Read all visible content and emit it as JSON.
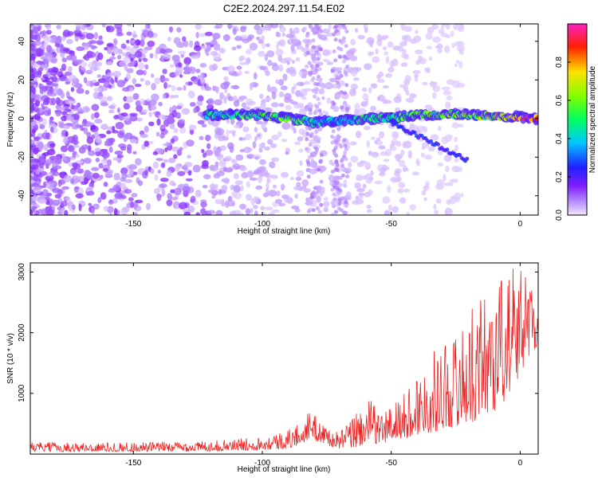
{
  "title": "C2E2.2024.297.11.54.E02",
  "chart_data": [
    {
      "type": "heatmap",
      "xlabel": "Height of straight line (km)",
      "ylabel": "Frequency (Hz)",
      "xlim": [
        -190,
        7
      ],
      "ylim": [
        -50,
        49
      ],
      "xticks": [
        -150,
        -100,
        -50,
        0
      ],
      "yticks": [
        -40,
        -20,
        0,
        20,
        40
      ],
      "colorbar": {
        "label": "Normalized spectral amplitude",
        "range": [
          0,
          1
        ],
        "ticks": [
          "0.0",
          "0.2",
          "0.4",
          "0.6",
          "0.8"
        ]
      },
      "ridge": {
        "description_points_x": [
          -120,
          -110,
          -100,
          -90,
          -80,
          -70,
          -60,
          -50,
          -40,
          -30,
          -20,
          -10,
          0,
          5
        ],
        "frequency": [
          2,
          2,
          2,
          0,
          -2,
          -1,
          0,
          0,
          2,
          2,
          2,
          1,
          1,
          0
        ],
        "amplitude": [
          0.45,
          0.5,
          0.55,
          0.6,
          0.45,
          0.35,
          0.55,
          0.5,
          0.55,
          0.55,
          0.6,
          0.65,
          0.9,
          0.95
        ]
      }
    },
    {
      "type": "line",
      "xlabel": "Height of straight line (km)",
      "ylabel": "SNR (10 * v/v)",
      "xlim": [
        -190,
        7
      ],
      "ylim": [
        0,
        3150
      ],
      "xticks": [
        -150,
        -100,
        -50,
        0
      ],
      "yticks": [
        1000,
        2000,
        3000
      ],
      "series": [
        {
          "color": "#ee2222",
          "x": [
            -190,
            -170,
            -150,
            -130,
            -120,
            -110,
            -100,
            -90,
            -85,
            -82,
            -78,
            -72,
            -68,
            -62,
            -58,
            -54,
            -50,
            -45,
            -40,
            -35,
            -30,
            -25,
            -20,
            -15,
            -10,
            -5,
            0,
            3,
            7
          ],
          "envelope_low": [
            40,
            40,
            40,
            40,
            50,
            60,
            70,
            90,
            150,
            250,
            200,
            100,
            80,
            120,
            200,
            150,
            200,
            250,
            300,
            350,
            400,
            450,
            500,
            600,
            700,
            900,
            1300,
            1600,
            1800
          ],
          "envelope_high": [
            200,
            190,
            200,
            210,
            220,
            250,
            300,
            400,
            550,
            700,
            600,
            350,
            450,
            800,
            900,
            700,
            850,
            1000,
            1350,
            1600,
            1900,
            2000,
            2300,
            2700,
            2900,
            3100,
            3100,
            3100,
            2400
          ]
        }
      ]
    }
  ]
}
